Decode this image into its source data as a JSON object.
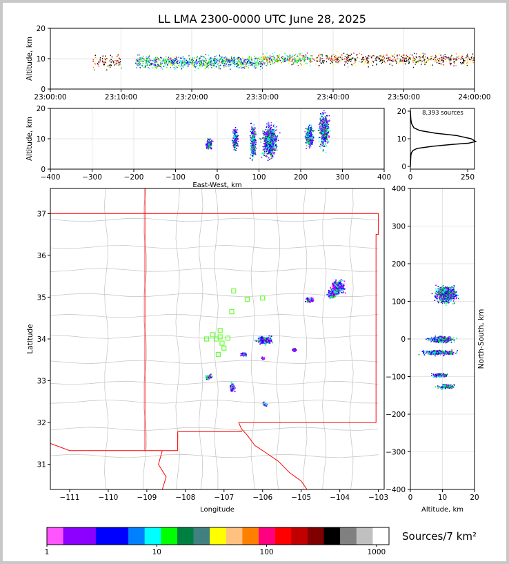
{
  "title": "LL LMA 2300-0000 UTC June 28, 2025",
  "chart_data": [
    {
      "type": "scatter",
      "panel": "altitude-time",
      "ylabel": "Altitude, km",
      "ylim": [
        0,
        20
      ],
      "yticks": [
        "0",
        "10",
        "20"
      ],
      "xlim_minutes": [
        0,
        60
      ],
      "xticks": [
        "23:00:00",
        "23:10:00",
        "23:20:00",
        "23:30:00",
        "23:40:00",
        "23:50:00",
        "24:00:00"
      ],
      "activity_bands": [
        {
          "start": 6,
          "end": 10,
          "center": 9,
          "density": 0.4
        },
        {
          "start": 12,
          "end": 30,
          "center": 9,
          "density": 1.0
        },
        {
          "start": 30,
          "end": 37,
          "center": 10,
          "density": 0.8
        },
        {
          "start": 37,
          "end": 60,
          "center": 10,
          "density": 0.45
        }
      ]
    },
    {
      "type": "scatter",
      "panel": "altitude-eastwest",
      "xlabel": "East-West, km",
      "ylabel": "Altitude, km",
      "xlim": [
        -400,
        400
      ],
      "ylim": [
        0,
        20
      ],
      "xticks": [
        "−400",
        "−300",
        "−200",
        "−100",
        "0",
        "100",
        "200",
        "300",
        "400"
      ],
      "yticks": [
        "0",
        "10",
        "20"
      ],
      "clusters": [
        {
          "x": -20,
          "z": 8.5,
          "w": 12,
          "h": 4
        },
        {
          "x": 42,
          "z": 10,
          "w": 10,
          "h": 8
        },
        {
          "x": 85,
          "z": 9,
          "w": 10,
          "h": 12
        },
        {
          "x": 125,
          "z": 9.5,
          "w": 28,
          "h": 11
        },
        {
          "x": 220,
          "z": 11,
          "w": 16,
          "h": 8
        },
        {
          "x": 255,
          "z": 13,
          "w": 18,
          "h": 12
        }
      ]
    },
    {
      "type": "line",
      "panel": "altitude-histogram",
      "annotation": "8,393 sources",
      "xlim": [
        0,
        280
      ],
      "ylim": [
        0,
        20
      ],
      "xticks": [
        "0",
        "250"
      ],
      "yticks": [
        "0",
        "10",
        "20"
      ],
      "x": [
        0,
        2,
        5,
        12,
        30,
        100,
        190,
        255,
        285,
        265,
        200,
        110,
        40,
        15,
        5,
        2,
        0
      ],
      "y": [
        0,
        4,
        5,
        5.8,
        6.5,
        7.3,
        8,
        8.4,
        9,
        10,
        11.2,
        12,
        13,
        14,
        15.5,
        17,
        20
      ]
    },
    {
      "type": "scatter",
      "panel": "map",
      "xlabel": "Longitude",
      "ylabel": "Latitude",
      "xlim": [
        -111.5,
        -102.85
      ],
      "ylim": [
        30.4,
        37.6
      ],
      "xticks": [
        "−111",
        "−110",
        "−109",
        "−108",
        "−107",
        "−106",
        "−105",
        "−104",
        "−103"
      ],
      "yticks": [
        "31",
        "32",
        "33",
        "34",
        "35",
        "36",
        "37"
      ],
      "clusters": [
        {
          "lon": -104.05,
          "lat": 35.25,
          "w": 0.3,
          "h": 0.3
        },
        {
          "lon": -104.2,
          "lat": 35.1,
          "w": 0.2,
          "h": 0.2
        },
        {
          "lon": -104.8,
          "lat": 34.95,
          "w": 0.2,
          "h": 0.12
        },
        {
          "lon": -105.95,
          "lat": 33.98,
          "w": 0.4,
          "h": 0.18
        },
        {
          "lon": -106.5,
          "lat": 33.65,
          "w": 0.15,
          "h": 0.1
        },
        {
          "lon": -107.4,
          "lat": 33.1,
          "w": 0.15,
          "h": 0.12
        },
        {
          "lon": -106.8,
          "lat": 32.85,
          "w": 0.12,
          "h": 0.2
        },
        {
          "lon": -105.95,
          "lat": 32.45,
          "w": 0.12,
          "h": 0.08
        },
        {
          "lon": -105.2,
          "lat": 33.75,
          "w": 0.12,
          "h": 0.08
        },
        {
          "lon": -106.0,
          "lat": 33.55,
          "w": 0.08,
          "h": 0.06
        }
      ],
      "stations": [
        {
          "lon": -106.75,
          "lat": 35.15
        },
        {
          "lon": -106.4,
          "lat": 34.95
        },
        {
          "lon": -106.0,
          "lat": 34.98
        },
        {
          "lon": -106.8,
          "lat": 34.65
        },
        {
          "lon": -107.1,
          "lat": 34.2
        },
        {
          "lon": -107.3,
          "lat": 34.1
        },
        {
          "lon": -107.1,
          "lat": 34.05
        },
        {
          "lon": -107.45,
          "lat": 34.0
        },
        {
          "lon": -107.2,
          "lat": 34.0
        },
        {
          "lon": -106.9,
          "lat": 34.02
        },
        {
          "lon": -107.05,
          "lat": 33.9
        },
        {
          "lon": -107.0,
          "lat": 33.78
        },
        {
          "lon": -107.15,
          "lat": 33.63
        }
      ]
    },
    {
      "type": "scatter",
      "panel": "northsouth-altitude",
      "xlabel": "Altitude, km",
      "ylabel": "North-South, km",
      "xlim": [
        0,
        20
      ],
      "ylim": [
        -400,
        400
      ],
      "xticks": [
        "0",
        "10",
        "20"
      ],
      "yticks": [
        "−400",
        "−300",
        "−200",
        "−100",
        "0",
        "100",
        "200",
        "300",
        "400"
      ],
      "clusters": [
        {
          "z": 11,
          "y": 120,
          "w": 8,
          "h": 40
        },
        {
          "z": 9.5,
          "y": 0,
          "w": 10,
          "h": 16
        },
        {
          "z": 9,
          "y": -35,
          "w": 12,
          "h": 12
        },
        {
          "z": 9,
          "y": -95,
          "w": 6,
          "h": 10
        },
        {
          "z": 11,
          "y": -125,
          "w": 6,
          "h": 12
        }
      ]
    },
    {
      "type": "colorbar",
      "panel": "density-colorbar",
      "label": "Sources/7 km²",
      "scale": "log",
      "range": [
        1,
        1300
      ],
      "ticks": [
        "1",
        "10",
        "100",
        "1000"
      ],
      "colors": [
        "#ff55ff",
        "#8b00ff",
        "#8b00ff",
        "#0000ff",
        "#0000ff",
        "#0080ff",
        "#00ffff",
        "#00ff00",
        "#008040",
        "#408080",
        "#ffff00",
        "#ffc080",
        "#ff8000",
        "#ff0080",
        "#ff0000",
        "#c00000",
        "#800000",
        "#000000",
        "#808080",
        "#c0c0c0",
        "#ffffff"
      ]
    }
  ]
}
